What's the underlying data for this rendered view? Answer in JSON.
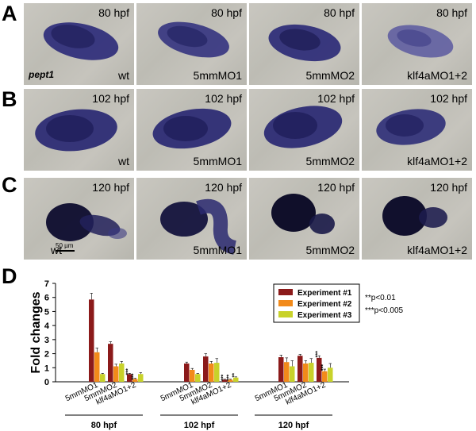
{
  "panels": [
    {
      "letter": "A",
      "stage": "80 hpf",
      "gene": "pept1"
    },
    {
      "letter": "B",
      "stage": "102 hpf"
    },
    {
      "letter": "C",
      "stage": "120 hpf",
      "scale": "50 µm"
    },
    {
      "letter": "D"
    }
  ],
  "conditions": [
    "wt",
    "5mmMO1",
    "5mmMO2",
    "klf4aMO1+2"
  ],
  "colors": {
    "stain": "#2b2a78",
    "stain_dark": "#0d0c2e",
    "exp1": "#8b1a1a",
    "exp2": "#f28a1a",
    "exp3": "#c8d22a"
  },
  "chart_data": {
    "type": "bar",
    "ylabel": "Fold changes",
    "ylim": [
      0,
      7
    ],
    "yticks": [
      "0",
      "1",
      "2",
      "3",
      "4",
      "5",
      "6",
      "7"
    ],
    "groups": [
      "80 hpf",
      "102 hpf",
      "120 hpf"
    ],
    "categories": [
      "5mmMO1",
      "5mmMO2",
      "klf4aMO1+2"
    ],
    "series": [
      {
        "name": "Experiment #1",
        "values": [
          [
            5.85,
            2.7,
            0.55
          ],
          [
            1.3,
            1.8,
            0.15
          ],
          [
            1.75,
            1.85,
            1.7
          ]
        ]
      },
      {
        "name": "Experiment #2",
        "values": [
          [
            2.1,
            1.1,
            0.2
          ],
          [
            0.85,
            1.3,
            0.15
          ],
          [
            1.4,
            1.3,
            0.75
          ]
        ]
      },
      {
        "name": "Experiment #3",
        "values": [
          [
            0.55,
            1.3,
            0.55
          ],
          [
            0.55,
            1.35,
            0.3
          ],
          [
            1.1,
            1.35,
            1.0
          ]
        ]
      }
    ],
    "errors": [
      [
        [
          0.45,
          0.15,
          0.05
        ],
        [
          0.1,
          0.2,
          0.03
        ],
        [
          0.15,
          0.1,
          0.15
        ]
      ],
      [
        [
          0.3,
          0.15,
          0.05
        ],
        [
          0.1,
          0.15,
          0.03
        ],
        [
          0.3,
          0.2,
          0.15
        ]
      ],
      [
        [
          0.05,
          0.15,
          0.1
        ],
        [
          0.05,
          0.3,
          0.05
        ],
        [
          0.4,
          0.3,
          0.3
        ]
      ]
    ],
    "significance": [
      [
        [
          "",
          "",
          "***"
        ],
        [
          "",
          "",
          "***"
        ],
        [
          "",
          "",
          "***"
        ]
      ],
      [
        [
          "",
          "",
          "***"
        ],
        [
          "",
          "",
          "***"
        ],
        [
          "",
          "",
          "***"
        ]
      ],
      [
        [
          "",
          "",
          ""
        ],
        [
          "",
          "",
          "**"
        ],
        [
          "",
          "",
          ""
        ]
      ]
    ],
    "sig_legend": [
      "**p<0.01",
      "***p<0.005"
    ],
    "legend_position": "top-right"
  }
}
